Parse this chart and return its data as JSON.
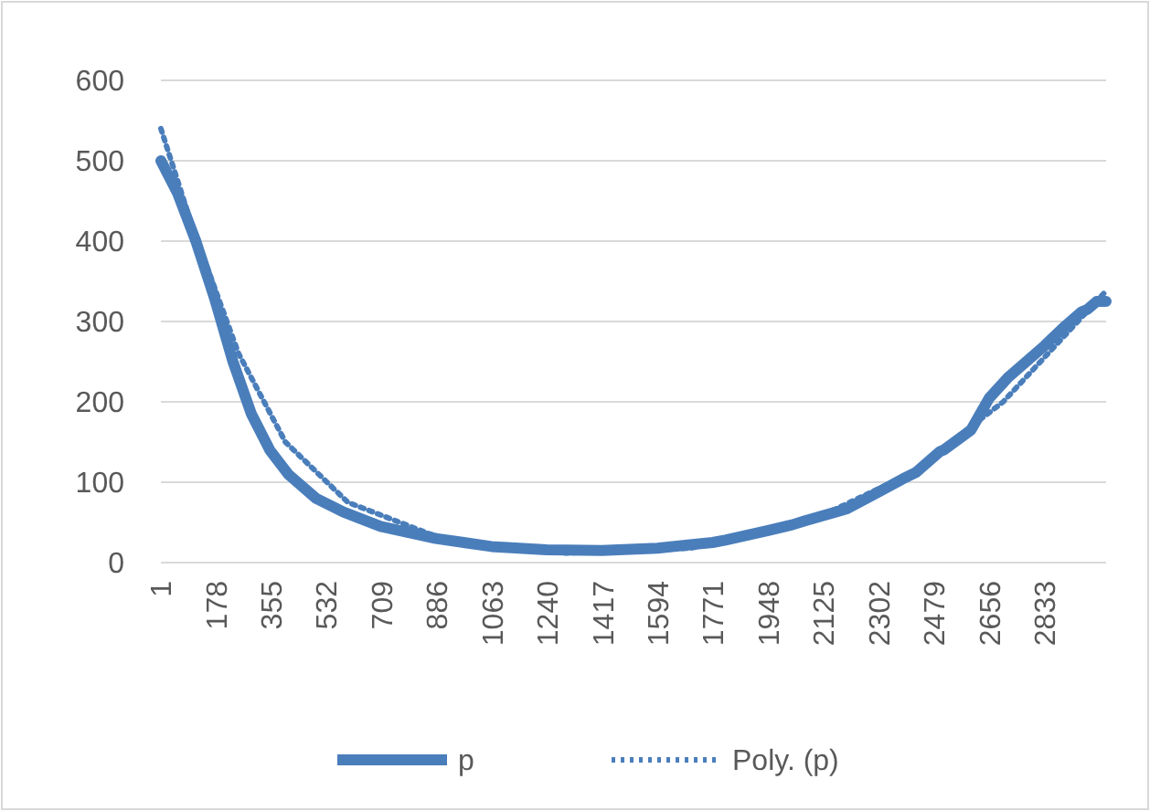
{
  "chart_data": {
    "type": "line",
    "legend": "bottom",
    "grid": "y",
    "xlim": [
      1,
      3030
    ],
    "xticks": [
      1,
      178,
      355,
      532,
      709,
      886,
      1063,
      1240,
      1417,
      1594,
      1771,
      1948,
      2125,
      2302,
      2479,
      2656,
      2833
    ],
    "ylim": [
      0,
      600
    ],
    "yticks": [
      0,
      100,
      200,
      300,
      400,
      500,
      600
    ],
    "series": [
      {
        "name": "p",
        "color": "#4a7ebb",
        "line_style": "solid",
        "x": [
          1,
          54,
          113,
          172,
          232,
          291,
          350,
          409,
          498,
          586,
          705,
          882,
          1060,
          1237,
          1414,
          1592,
          1769,
          1810,
          1947,
          2024,
          2065,
          2183,
          2200,
          2302,
          2378,
          2420,
          2497,
          2509,
          2597,
          2656,
          2715,
          2774,
          2833,
          2892,
          2951,
          2970,
          3000,
          3030
        ],
        "values": [
          500,
          460,
          400,
          330,
          250,
          185,
          140,
          110,
          80,
          63,
          45,
          30,
          20,
          16,
          15,
          18,
          25,
          28,
          40,
          47,
          52,
          65,
          67,
          88,
          104,
          112,
          138,
          140,
          165,
          205,
          230,
          250,
          270,
          292,
          312,
          315,
          325,
          325
        ]
      },
      {
        "name": "Poly. (p)",
        "color": "#4a7ebb",
        "line_style": "dotted",
        "x": [
          1,
          100,
          250,
          400,
          600,
          900,
          1300,
          1700,
          2100,
          2400,
          2700,
          3030
        ],
        "values": [
          540,
          420,
          260,
          150,
          75,
          30,
          12,
          18,
          55,
          110,
          200,
          338
        ]
      }
    ]
  }
}
